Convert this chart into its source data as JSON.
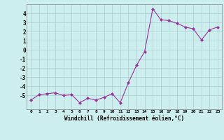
{
  "x": [
    0,
    1,
    2,
    3,
    4,
    5,
    6,
    7,
    8,
    9,
    10,
    11,
    12,
    13,
    14,
    15,
    16,
    17,
    18,
    19,
    20,
    21,
    22,
    23
  ],
  "y": [
    -5.5,
    -4.9,
    -4.8,
    -4.7,
    -5.0,
    -4.9,
    -5.8,
    -5.3,
    -5.5,
    -5.2,
    -4.8,
    -5.8,
    -3.6,
    -1.7,
    -0.2,
    4.5,
    3.3,
    3.2,
    2.9,
    2.5,
    2.3,
    1.1,
    2.2,
    2.5
  ],
  "line_color": "#993399",
  "marker_color": "#993399",
  "bg_color": "#cceeee",
  "grid_color": "#aacccc",
  "xlabel": "Windchill (Refroidissement éolien,°C)",
  "ylim": [
    -6.5,
    5.0
  ],
  "xlim": [
    -0.5,
    23.5
  ],
  "yticks": [
    -5,
    -4,
    -3,
    -2,
    -1,
    0,
    1,
    2,
    3,
    4
  ],
  "xtick_labels": [
    "0",
    "1",
    "2",
    "3",
    "4",
    "5",
    "6",
    "7",
    "8",
    "9",
    "10",
    "11",
    "12",
    "13",
    "14",
    "15",
    "16",
    "17",
    "18",
    "19",
    "20",
    "21",
    "22",
    "23"
  ]
}
